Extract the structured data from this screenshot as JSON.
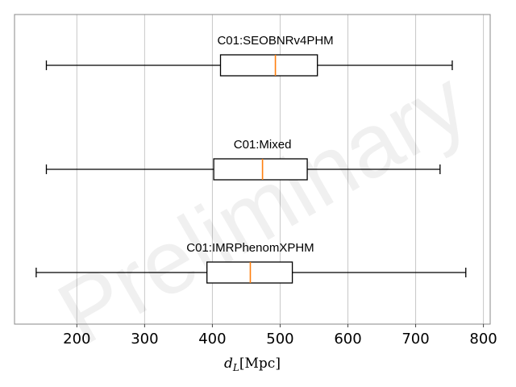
{
  "chart_data": {
    "type": "boxplot",
    "orientation": "horizontal",
    "xlabel_main": "d",
    "xlabel_sub": "L",
    "xlabel_unit": "[Mpc]",
    "xlim": [
      108,
      810
    ],
    "xticks": [
      200,
      300,
      400,
      500,
      600,
      700,
      800
    ],
    "grid": "vertical",
    "watermark": "Preliminary",
    "colors": {
      "box": "#000000",
      "median": "#ff7f0e",
      "grid": "#c8c8c8",
      "frame": "#888888"
    },
    "boxes": [
      {
        "label": "C01:SEOBNRv4PHM",
        "whisker_low": 155,
        "q1": 412,
        "median": 493,
        "q3": 555,
        "whisker_high": 754
      },
      {
        "label": "C01:Mixed",
        "whisker_low": 155,
        "q1": 402,
        "median": 474,
        "q3": 540,
        "whisker_high": 736
      },
      {
        "label": "C01:IMRPhenomXPHM",
        "whisker_low": 140,
        "q1": 392,
        "median": 456,
        "q3": 518,
        "whisker_high": 774
      }
    ]
  }
}
